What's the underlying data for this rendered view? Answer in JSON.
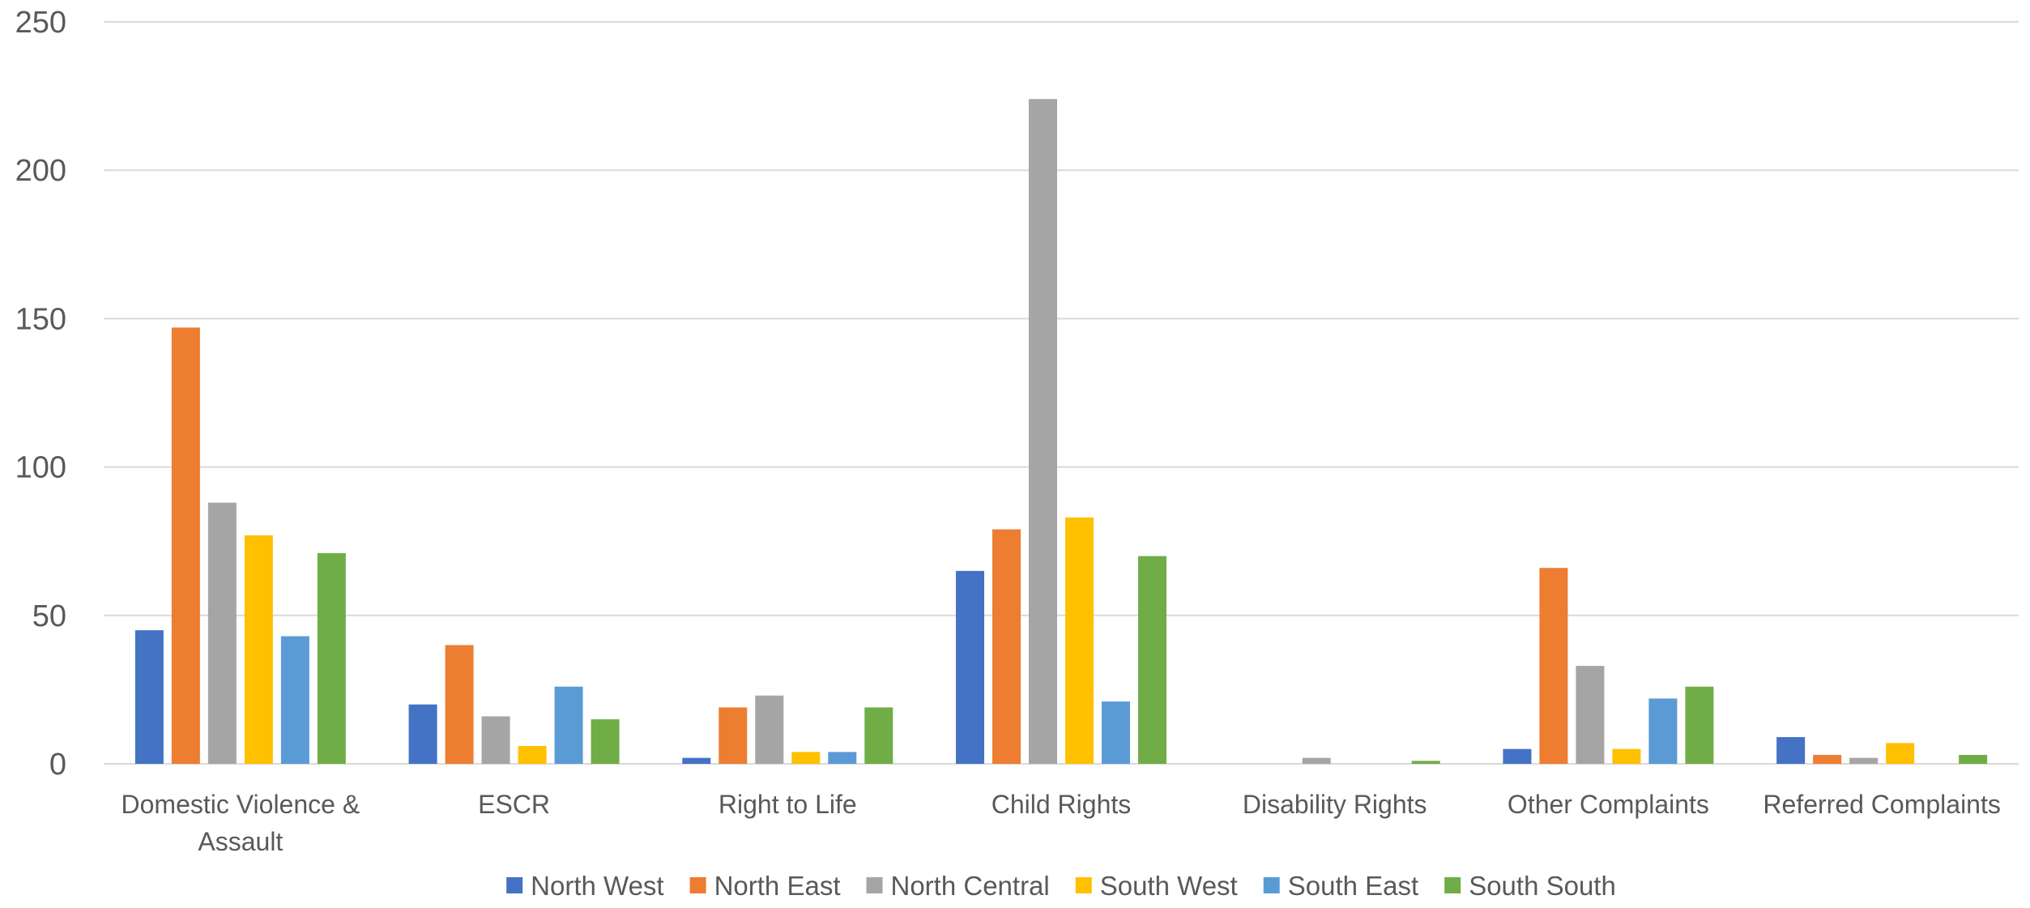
{
  "chart_data": {
    "type": "bar",
    "title": "",
    "xlabel": "",
    "ylabel": "",
    "ylim": [
      0,
      250
    ],
    "yticks": [
      0,
      50,
      100,
      150,
      200,
      250
    ],
    "grid": true,
    "legend_position": "bottom",
    "categories": [
      [
        "Domestic Violence &",
        "Assault"
      ],
      [
        "ESCR"
      ],
      [
        "Right to Life"
      ],
      [
        "Child Rights"
      ],
      [
        "Disability Rights"
      ],
      [
        "Other Complaints"
      ],
      [
        "Referred Complaints"
      ]
    ],
    "series": [
      {
        "name": "North West",
        "color": "#4472C4",
        "values": [
          45,
          20,
          2,
          65,
          0,
          5,
          9
        ]
      },
      {
        "name": "North East",
        "color": "#ED7D31",
        "values": [
          147,
          40,
          19,
          79,
          0,
          66,
          3
        ]
      },
      {
        "name": "North Central",
        "color": "#A5A5A5",
        "values": [
          88,
          16,
          23,
          224,
          2,
          33,
          2
        ]
      },
      {
        "name": "South West",
        "color": "#FFC000",
        "values": [
          77,
          6,
          4,
          83,
          0,
          5,
          7
        ]
      },
      {
        "name": "South East",
        "color": "#5B9BD5",
        "values": [
          43,
          26,
          4,
          21,
          0,
          22,
          0
        ]
      },
      {
        "name": "South South",
        "color": "#70AD47",
        "values": [
          71,
          15,
          19,
          70,
          1,
          26,
          3
        ]
      }
    ]
  }
}
